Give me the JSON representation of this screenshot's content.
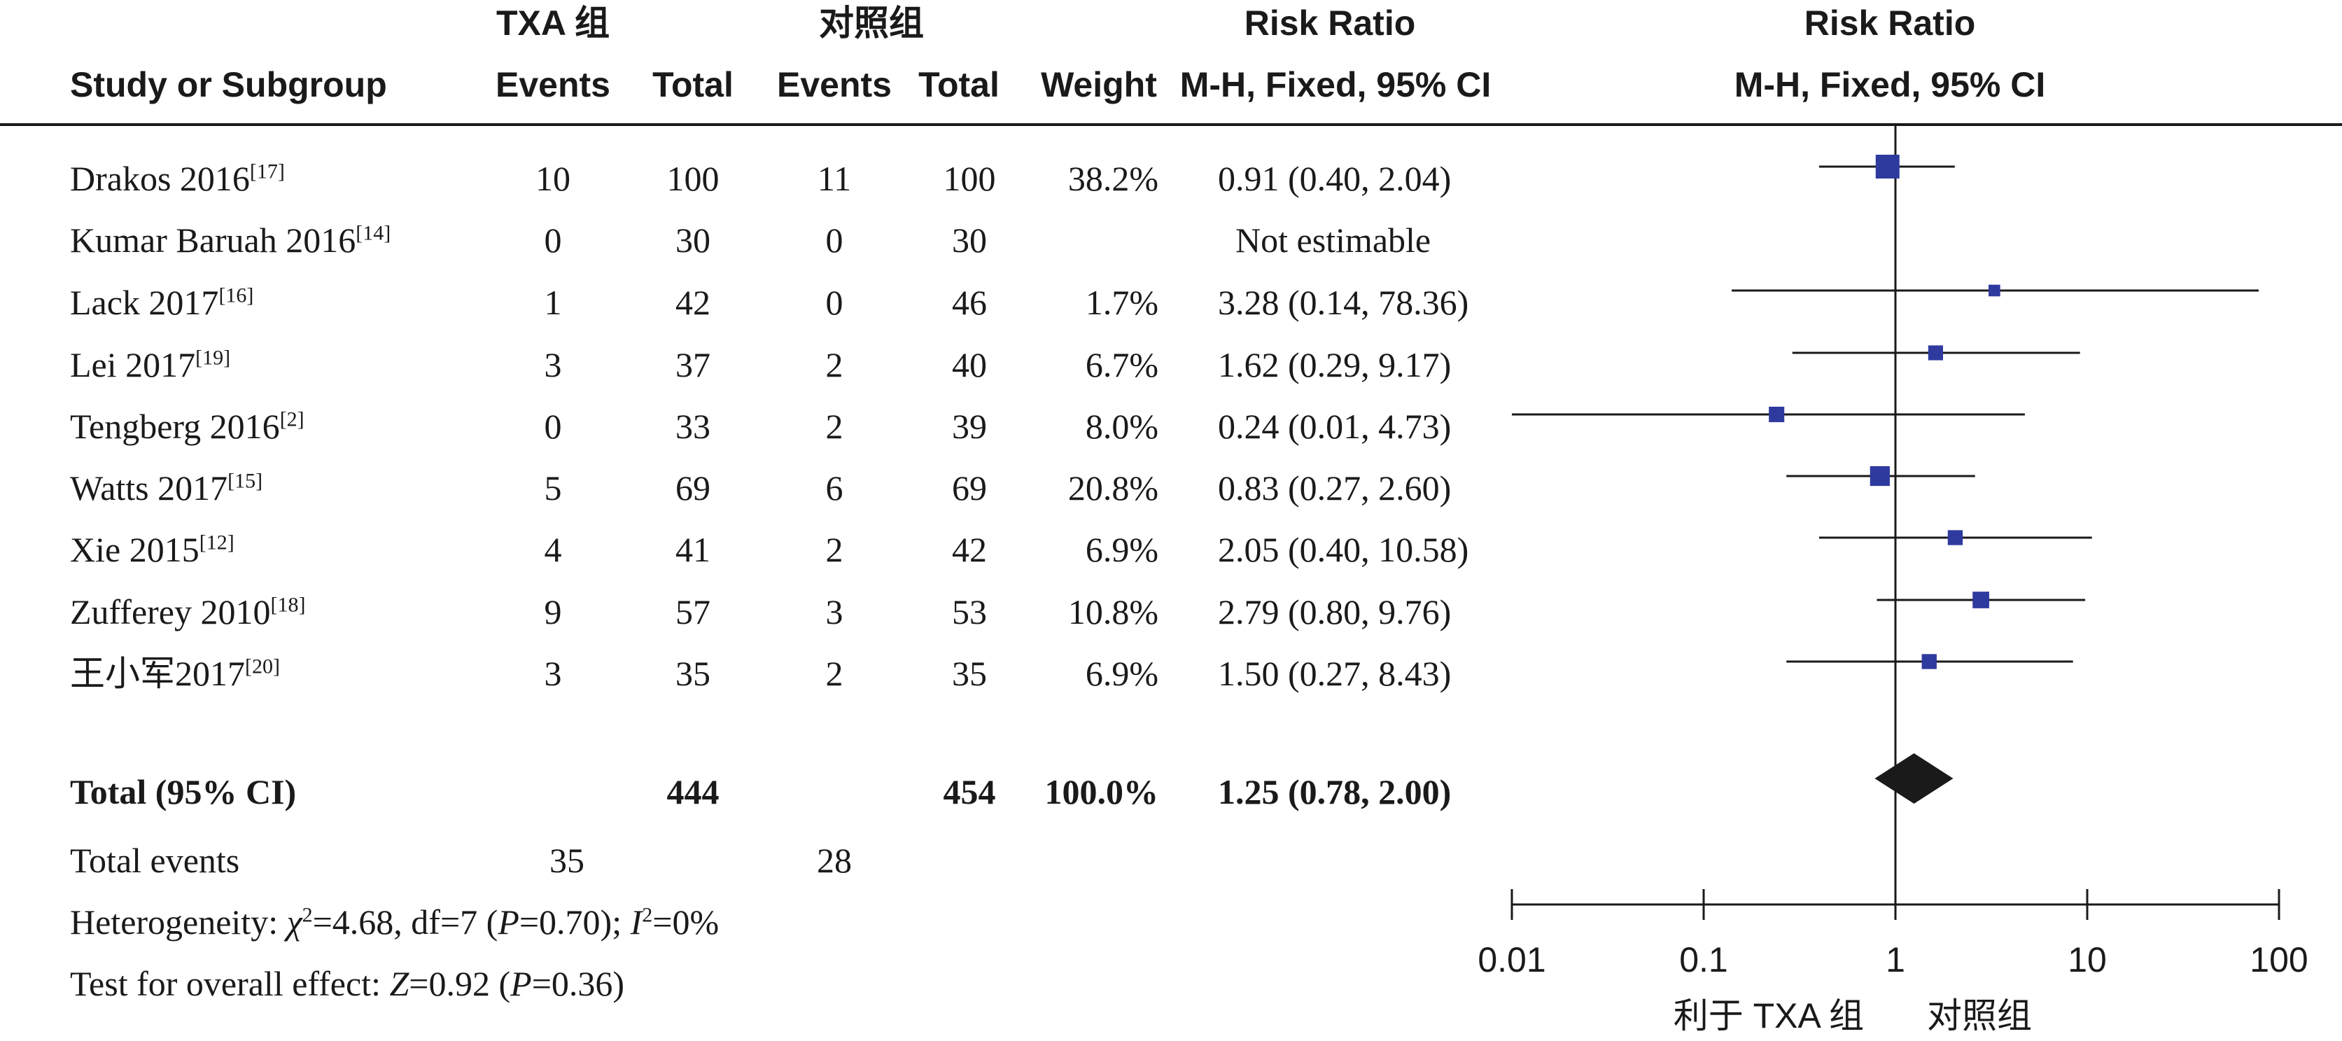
{
  "header": {
    "group1": "TXA 组",
    "group2": "对照组",
    "effect_col_title": "Risk Ratio",
    "plot_title": "Risk Ratio",
    "study_col": "Study or Subgroup",
    "events1": "Events",
    "total1": "Total",
    "events2": "Events",
    "total2": "Total",
    "weight": "Weight",
    "method": "M-H, Fixed, 95% CI",
    "plot_method": "M-H, Fixed, 95% CI"
  },
  "studies": [
    {
      "name": "Drakos 2016",
      "ref": "[17]",
      "e1": "10",
      "t1": "100",
      "e2": "11",
      "t2": "100",
      "weight": "38.2%",
      "ci_text": "0.91 (0.40, 2.04)"
    },
    {
      "name": "Kumar Baruah 2016",
      "ref": "[14]",
      "e1": "0",
      "t1": "30",
      "e2": "0",
      "t2": "30",
      "weight": "",
      "ci_text": "Not estimable"
    },
    {
      "name": "Lack 2017",
      "ref": "[16]",
      "e1": "1",
      "t1": "42",
      "e2": "0",
      "t2": "46",
      "weight": "1.7%",
      "ci_text": "3.28 (0.14, 78.36)"
    },
    {
      "name": "Lei 2017",
      "ref": "[19]",
      "e1": "3",
      "t1": "37",
      "e2": "2",
      "t2": "40",
      "weight": "6.7%",
      "ci_text": "1.62 (0.29, 9.17)"
    },
    {
      "name": "Tengberg 2016",
      "ref": "[2]",
      "e1": "0",
      "t1": "33",
      "e2": "2",
      "t2": "39",
      "weight": "8.0%",
      "ci_text": "0.24 (0.01, 4.73)"
    },
    {
      "name": "Watts 2017",
      "ref": "[15]",
      "e1": "5",
      "t1": "69",
      "e2": "6",
      "t2": "69",
      "weight": "20.8%",
      "ci_text": "0.83 (0.27, 2.60)"
    },
    {
      "name": "Xie 2015",
      "ref": "[12]",
      "e1": "4",
      "t1": "41",
      "e2": "2",
      "t2": "42",
      "weight": "6.9%",
      "ci_text": "2.05 (0.40, 10.58)"
    },
    {
      "name": "Zufferey 2010",
      "ref": "[18]",
      "e1": "9",
      "t1": "57",
      "e2": "3",
      "t2": "53",
      "weight": "10.8%",
      "ci_text": "2.79 (0.80, 9.76)"
    },
    {
      "name": "王小军2017",
      "ref": "[20]",
      "e1": "3",
      "t1": "35",
      "e2": "2",
      "t2": "35",
      "weight": "6.9%",
      "ci_text": "1.50 (0.27, 8.43)"
    }
  ],
  "total": {
    "label": "Total (95% CI)",
    "t1": "444",
    "t2": "454",
    "weight": "100.0%",
    "ci_text": "1.25 (0.78, 2.00)"
  },
  "events_row": {
    "label": "Total events",
    "e1": "35",
    "e2": "28"
  },
  "heterogeneity": {
    "prefix": "Heterogeneity: ",
    "chi_sym": "χ",
    "chi_sup": "2",
    "chi_val": "=4.68, df=7 (",
    "p_sym": "P",
    "p_val": "=0.70); ",
    "i_sym": "I",
    "i_sup": "2",
    "i_val": "=0%"
  },
  "overall": {
    "prefix": "Test for overall effect: ",
    "z_sym": "Z",
    "z_val": "=0.92 (",
    "p_sym": "P",
    "p_val": "=0.36)"
  },
  "favours": {
    "left": "利于 TXA 组",
    "right": "对照组"
  },
  "colors": {
    "square": "#2e3a9e",
    "diamond": "#1a1a1a",
    "line": "#1a1a1a"
  },
  "chart_data": {
    "type": "forest",
    "scale": "log",
    "xlim": [
      0.01,
      100
    ],
    "ticks": [
      0.01,
      0.1,
      1,
      10,
      100
    ],
    "tick_labels": [
      "0.01",
      "0.1",
      "1",
      "10",
      "100"
    ],
    "null_value": 1,
    "points": [
      {
        "study": "Drakos 2016",
        "rr": 0.91,
        "lo": 0.4,
        "hi": 2.04,
        "weight": 38.2
      },
      {
        "study": "Kumar Baruah 2016",
        "rr": null,
        "lo": null,
        "hi": null,
        "weight": null
      },
      {
        "study": "Lack 2017",
        "rr": 3.28,
        "lo": 0.14,
        "hi": 78.36,
        "weight": 1.7
      },
      {
        "study": "Lei 2017",
        "rr": 1.62,
        "lo": 0.29,
        "hi": 9.17,
        "weight": 6.7
      },
      {
        "study": "Tengberg 2016",
        "rr": 0.24,
        "lo": 0.01,
        "hi": 4.73,
        "weight": 8.0
      },
      {
        "study": "Watts 2017",
        "rr": 0.83,
        "lo": 0.27,
        "hi": 2.6,
        "weight": 20.8
      },
      {
        "study": "Xie 2015",
        "rr": 2.05,
        "lo": 0.4,
        "hi": 10.58,
        "weight": 6.9
      },
      {
        "study": "Zufferey 2010",
        "rr": 2.79,
        "lo": 0.8,
        "hi": 9.76,
        "weight": 10.8
      },
      {
        "study": "王小军2017",
        "rr": 1.5,
        "lo": 0.27,
        "hi": 8.43,
        "weight": 6.9
      }
    ],
    "pooled": {
      "rr": 1.25,
      "lo": 0.78,
      "hi": 2.0
    }
  }
}
